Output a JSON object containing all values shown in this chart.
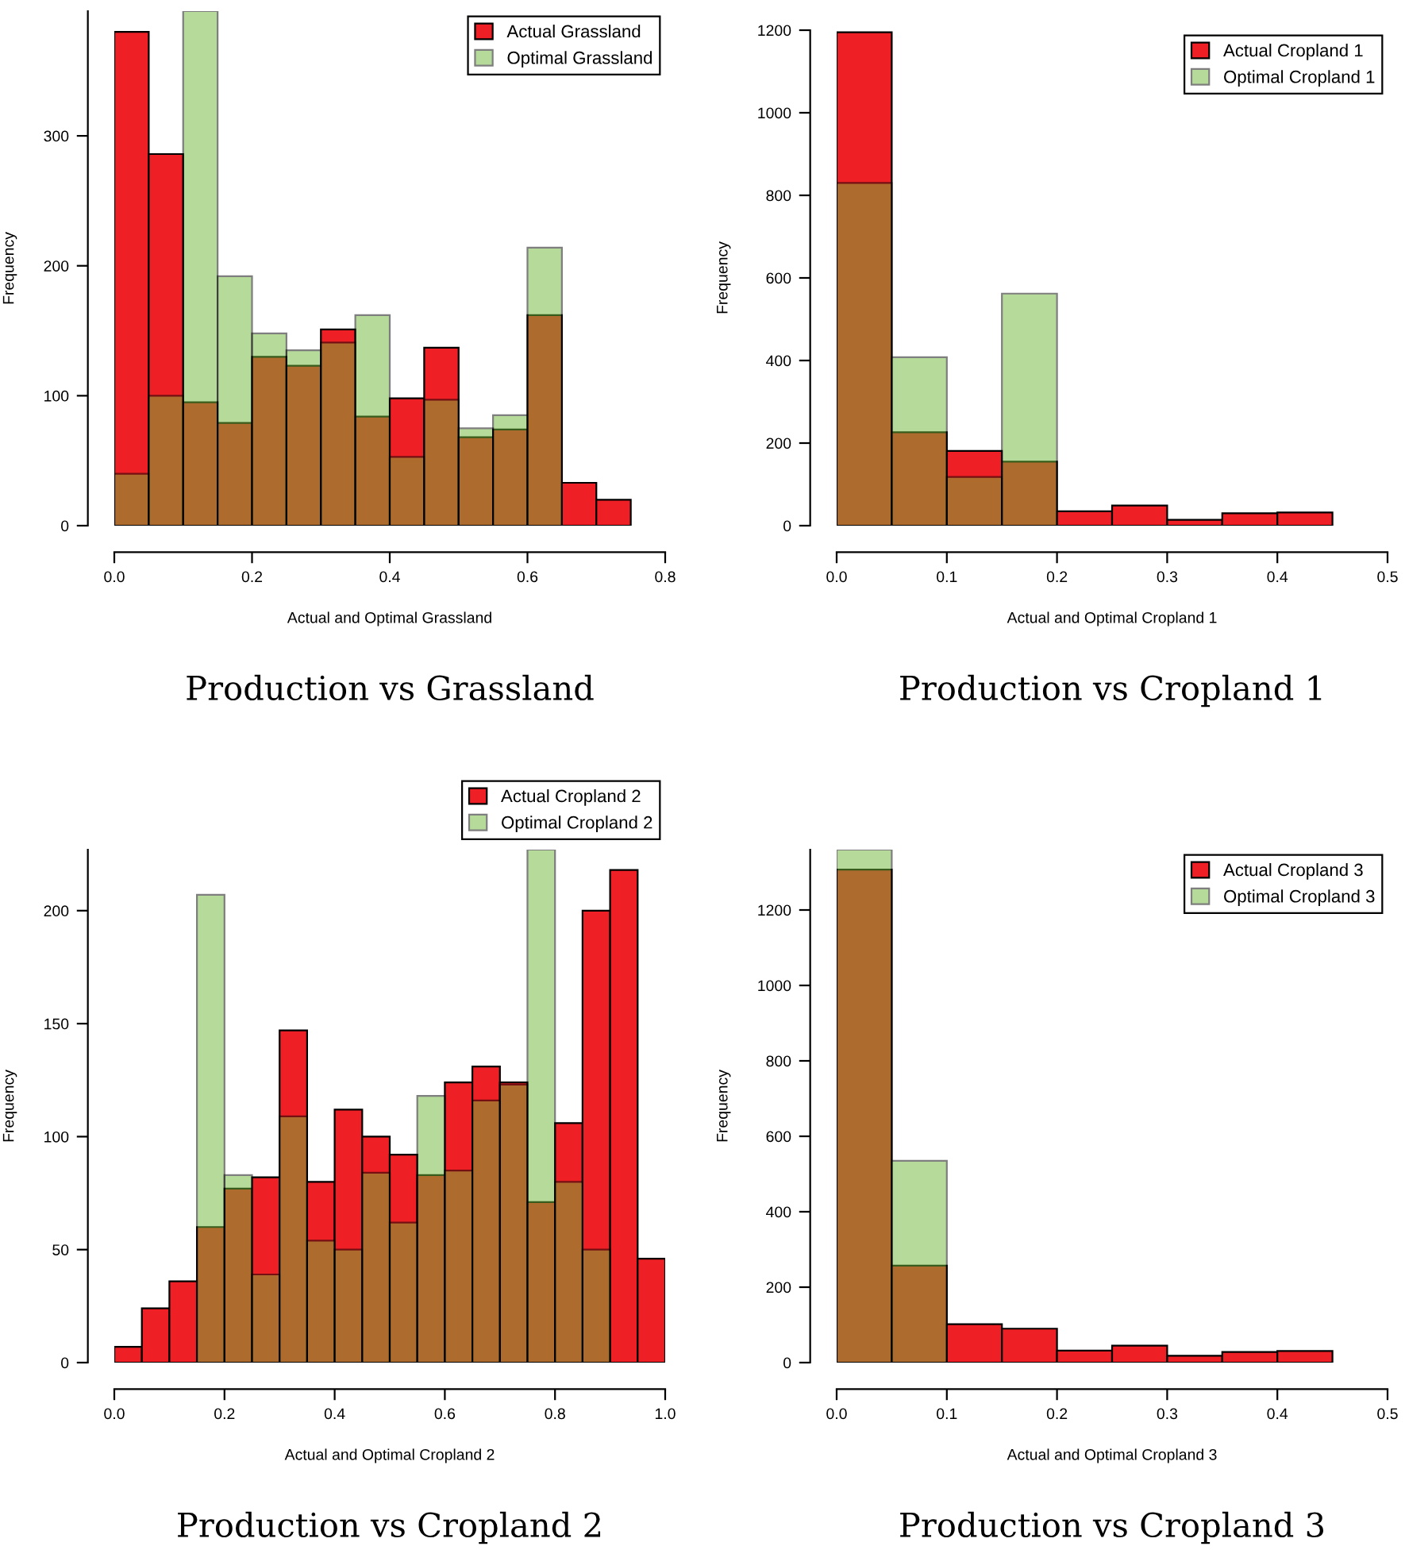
{
  "chart_data": [
    {
      "type": "histogram",
      "title": "Production vs Grassland",
      "xlabel": "Actual and Optimal Grassland",
      "ylabel": "Frequency",
      "xlim": [
        0,
        0.8
      ],
      "ylim": [
        0,
        396
      ],
      "xticks": [
        {
          "value": 0,
          "label": "0.0"
        },
        {
          "value": 0.2,
          "label": "0.2"
        },
        {
          "value": 0.4,
          "label": "0.4"
        },
        {
          "value": 0.6,
          "label": "0.6"
        },
        {
          "value": 0.8,
          "label": "0.8"
        }
      ],
      "yticks": [
        {
          "value": 0,
          "label": "0"
        },
        {
          "value": 100,
          "label": "100"
        },
        {
          "value": 200,
          "label": "200"
        },
        {
          "value": 300,
          "label": "300"
        }
      ],
      "legend": "top right",
      "bins": [
        0,
        0.05,
        0.1,
        0.15,
        0.2,
        0.25,
        0.3,
        0.35,
        0.4,
        0.45,
        0.5,
        0.55,
        0.6,
        0.65,
        0.7,
        0.75
      ],
      "series": [
        {
          "name": "Actual Grassland",
          "color": "#ee1f25",
          "values": [
            380,
            286,
            95,
            79,
            130,
            123,
            151,
            84,
            98,
            137,
            68,
            74,
            162,
            33,
            20
          ]
        },
        {
          "name": "Optimal Grassland",
          "color": "#6fb737",
          "values": [
            40,
            100,
            396,
            192,
            148,
            135,
            141,
            162,
            53,
            97,
            75,
            85,
            214,
            null,
            null
          ]
        }
      ]
    },
    {
      "type": "histogram",
      "title": "Production vs Cropland 1",
      "xlabel": "Actual and Optimal Cropland 1",
      "ylabel": "Frequency",
      "xlim": [
        0,
        0.5
      ],
      "ylim": [
        0,
        1200
      ],
      "xticks": [
        {
          "value": 0,
          "label": "0.0"
        },
        {
          "value": 0.1,
          "label": "0.1"
        },
        {
          "value": 0.2,
          "label": "0.2"
        },
        {
          "value": 0.3,
          "label": "0.3"
        },
        {
          "value": 0.4,
          "label": "0.4"
        },
        {
          "value": 0.5,
          "label": "0.5"
        }
      ],
      "yticks": [
        {
          "value": 0,
          "label": "0"
        },
        {
          "value": 200,
          "label": "200"
        },
        {
          "value": 400,
          "label": "400"
        },
        {
          "value": 600,
          "label": "600"
        },
        {
          "value": 800,
          "label": "800"
        },
        {
          "value": 1000,
          "label": "1000"
        },
        {
          "value": 1200,
          "label": "1200"
        }
      ],
      "legend": "top right",
      "bins": [
        0,
        0.05,
        0.1,
        0.15,
        0.2,
        0.25,
        0.3,
        0.35,
        0.4,
        0.45
      ],
      "series": [
        {
          "name": "Actual Cropland 1",
          "color": "#ee1f25",
          "values": [
            1195,
            226,
            181,
            155,
            35,
            49,
            14,
            30,
            32
          ]
        },
        {
          "name": "Optimal Cropland 1",
          "color": "#6fb737",
          "values": [
            830,
            408,
            118,
            562,
            null,
            null,
            null,
            null,
            null
          ]
        }
      ]
    },
    {
      "type": "histogram",
      "title": "Production vs Cropland 2",
      "xlabel": "Actual and Optimal Cropland 2",
      "ylabel": "Frequency",
      "xlim": [
        0,
        1.0
      ],
      "ylim": [
        0,
        227
      ],
      "xticks": [
        {
          "value": 0,
          "label": "0.0"
        },
        {
          "value": 0.2,
          "label": "0.2"
        },
        {
          "value": 0.4,
          "label": "0.4"
        },
        {
          "value": 0.6,
          "label": "0.6"
        },
        {
          "value": 0.8,
          "label": "0.8"
        },
        {
          "value": 1.0,
          "label": "1.0"
        }
      ],
      "yticks": [
        {
          "value": 0,
          "label": "0"
        },
        {
          "value": 50,
          "label": "50"
        },
        {
          "value": 100,
          "label": "100"
        },
        {
          "value": 150,
          "label": "150"
        },
        {
          "value": 200,
          "label": "200"
        }
      ],
      "legend": "top right",
      "bins": [
        0,
        0.05,
        0.1,
        0.15,
        0.2,
        0.25,
        0.3,
        0.35,
        0.4,
        0.45,
        0.5,
        0.55,
        0.6,
        0.65,
        0.7,
        0.75,
        0.8,
        0.85,
        0.9,
        0.95,
        1.0
      ],
      "series": [
        {
          "name": "Actual Cropland 2",
          "color": "#ee1f25",
          "values": [
            7,
            24,
            36,
            60,
            77,
            82,
            147,
            80,
            112,
            100,
            92,
            83,
            124,
            131,
            124,
            71,
            106,
            200,
            218,
            46
          ]
        },
        {
          "name": "Optimal Cropland 2",
          "color": "#6fb737",
          "values": [
            null,
            null,
            null,
            207,
            83,
            39,
            109,
            54,
            50,
            84,
            62,
            118,
            85,
            116,
            123,
            227,
            80,
            50,
            null,
            null
          ]
        }
      ]
    },
    {
      "type": "histogram",
      "title": "Production vs Cropland 3",
      "xlabel": "Actual and Optimal Cropland 3",
      "ylabel": "Frequency",
      "xlim": [
        0,
        0.5
      ],
      "ylim": [
        0,
        1360
      ],
      "xticks": [
        {
          "value": 0,
          "label": "0.0"
        },
        {
          "value": 0.1,
          "label": "0.1"
        },
        {
          "value": 0.2,
          "label": "0.2"
        },
        {
          "value": 0.3,
          "label": "0.3"
        },
        {
          "value": 0.4,
          "label": "0.4"
        },
        {
          "value": 0.5,
          "label": "0.5"
        }
      ],
      "yticks": [
        {
          "value": 0,
          "label": "0"
        },
        {
          "value": 200,
          "label": "200"
        },
        {
          "value": 400,
          "label": "400"
        },
        {
          "value": 600,
          "label": "600"
        },
        {
          "value": 800,
          "label": "800"
        },
        {
          "value": 1000,
          "label": "1000"
        },
        {
          "value": 1200,
          "label": "1200"
        }
      ],
      "legend": "top right",
      "bins": [
        0,
        0.05,
        0.1,
        0.15,
        0.2,
        0.25,
        0.3,
        0.35,
        0.4,
        0.45
      ],
      "series": [
        {
          "name": "Actual Cropland 3",
          "color": "#ee1f25",
          "values": [
            1307,
            257,
            102,
            90,
            32,
            45,
            18,
            28,
            31
          ]
        },
        {
          "name": "Optimal Cropland 3",
          "color": "#6fb737",
          "values": [
            1360,
            535,
            null,
            null,
            null,
            null,
            null,
            null,
            null
          ]
        }
      ]
    }
  ]
}
